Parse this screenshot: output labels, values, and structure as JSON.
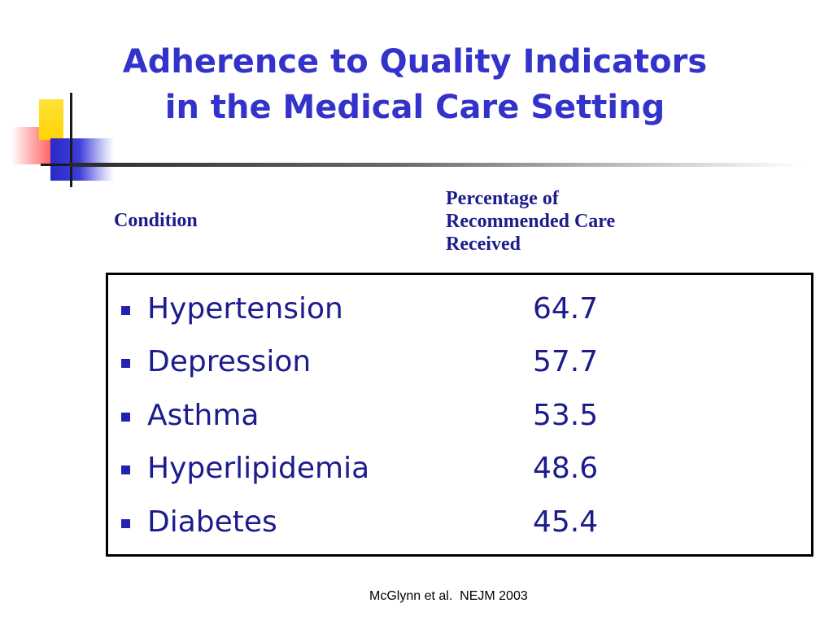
{
  "title": {
    "line1": "Adherence to Quality Indicators",
    "line2": "in the Medical Care Setting"
  },
  "columns": {
    "condition": "Condition",
    "percentage_lines": [
      "Percentage of",
      "Recommended Care",
      "Received"
    ]
  },
  "rows": [
    {
      "condition": "Hypertension",
      "value": "64.7"
    },
    {
      "condition": "Depression",
      "value": "57.7"
    },
    {
      "condition": "Asthma",
      "value": "53.5"
    },
    {
      "condition": "Hyperlipidemia",
      "value": "48.6"
    },
    {
      "condition": "Diabetes",
      "value": "45.4"
    }
  ],
  "citation": "McGlynn et al.  NEJM 2003",
  "colors": {
    "title": "#3333cc",
    "text": "#1c1c8c",
    "bullet": "#2222b2",
    "box_border": "#000000"
  }
}
